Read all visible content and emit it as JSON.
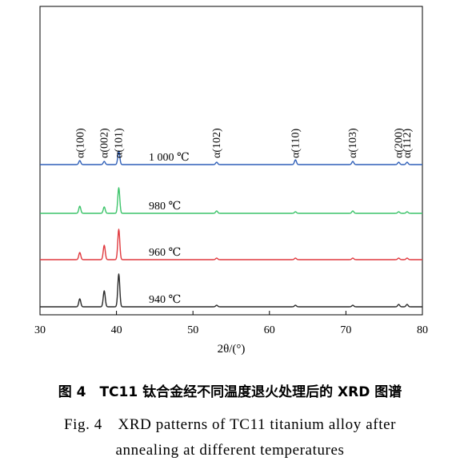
{
  "chart_data": {
    "type": "line",
    "xlabel": "2θ/(°)",
    "ylabel": "",
    "xlim": [
      30,
      80
    ],
    "x_ticks": [
      "30",
      "40",
      "50",
      "60",
      "70",
      "80"
    ],
    "peak_labels": [
      {
        "text": "α(100)",
        "x": 35.3
      },
      {
        "text": "α(002)",
        "x": 38.4
      },
      {
        "text": "α(101)",
        "x": 40.3
      },
      {
        "text": "α(102)",
        "x": 53.1
      },
      {
        "text": "α(110)",
        "x": 63.4
      },
      {
        "text": "α(103)",
        "x": 70.9
      },
      {
        "text": "α(200)",
        "x": 76.9
      },
      {
        "text": "α(112)",
        "x": 78.0
      }
    ],
    "series": [
      {
        "name": "1 000 ℃",
        "color": "#2f5fb8",
        "peaks": [
          {
            "x": 35.2,
            "height": 5
          },
          {
            "x": 38.4,
            "height": 4
          },
          {
            "x": 40.3,
            "height": 17
          },
          {
            "x": 53.1,
            "height": 3
          },
          {
            "x": 63.4,
            "height": 6
          },
          {
            "x": 70.9,
            "height": 4
          },
          {
            "x": 76.9,
            "height": 3
          },
          {
            "x": 78.0,
            "height": 3
          }
        ]
      },
      {
        "name": "980 ℃",
        "color": "#3cc46a",
        "peaks": [
          {
            "x": 35.2,
            "height": 9
          },
          {
            "x": 38.4,
            "height": 8
          },
          {
            "x": 40.3,
            "height": 32
          },
          {
            "x": 53.1,
            "height": 3
          },
          {
            "x": 63.4,
            "height": 2
          },
          {
            "x": 70.9,
            "height": 3
          },
          {
            "x": 76.9,
            "height": 2
          },
          {
            "x": 78.0,
            "height": 2
          }
        ]
      },
      {
        "name": "960 ℃",
        "color": "#e0393e",
        "peaks": [
          {
            "x": 35.2,
            "height": 9
          },
          {
            "x": 38.4,
            "height": 18
          },
          {
            "x": 40.3,
            "height": 38
          },
          {
            "x": 53.1,
            "height": 2
          },
          {
            "x": 63.4,
            "height": 2
          },
          {
            "x": 70.9,
            "height": 2
          },
          {
            "x": 76.9,
            "height": 2
          },
          {
            "x": 78.0,
            "height": 2
          }
        ]
      },
      {
        "name": "940 ℃",
        "color": "#2a2a2a",
        "peaks": [
          {
            "x": 35.2,
            "height": 10
          },
          {
            "x": 38.4,
            "height": 20
          },
          {
            "x": 40.3,
            "height": 41
          },
          {
            "x": 53.1,
            "height": 2
          },
          {
            "x": 63.4,
            "height": 2
          },
          {
            "x": 70.9,
            "height": 2
          },
          {
            "x": 76.9,
            "height": 3
          },
          {
            "x": 78.0,
            "height": 3
          }
        ]
      }
    ]
  },
  "caption": {
    "cn": "图 4　TC11 钛合金经不同温度退火处理后的 XRD 图谱",
    "en_line1": "Fig. 4　XRD patterns of TC11 titanium alloy after",
    "en_line2": "annealing at different temperatures"
  }
}
